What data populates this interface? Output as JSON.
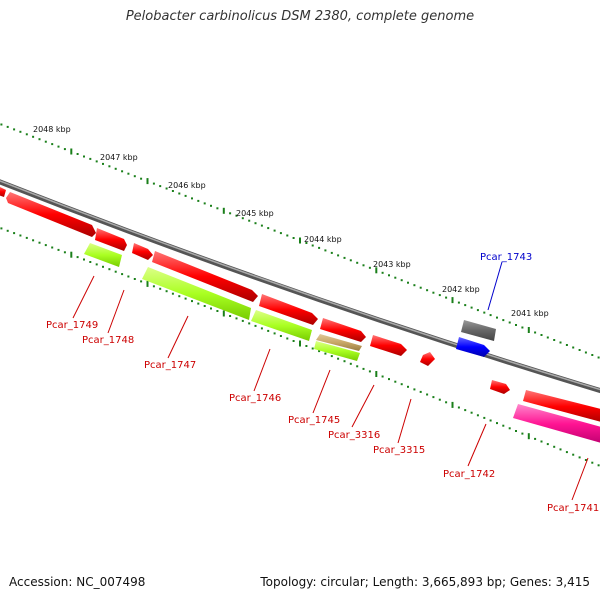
{
  "title": "Pelobacter carbinolicus DSM 2380, complete genome",
  "footer": {
    "accession": "Accession: NC_007498",
    "summary": "Topology: circular; Length: 3,665,893 bp; Genes: 3,415"
  },
  "scale_labels": [
    "2048 kbp",
    "2047 kbp",
    "2046 kbp",
    "2045 kbp",
    "2044 kbp",
    "2043 kbp",
    "2042 kbp",
    "2041 kbp"
  ],
  "genes": [
    {
      "label": "Pcar_1749",
      "color": "#ff0000",
      "strand": "forward"
    },
    {
      "label": "Pcar_1748",
      "color": "#ff0000",
      "strand": "forward"
    },
    {
      "label": "Pcar_1747",
      "color": "#ff0000",
      "strand": "forward"
    },
    {
      "label": "Pcar_1746",
      "color": "#ff0000",
      "strand": "forward"
    },
    {
      "label": "Pcar_1745",
      "color": "#ff0000",
      "strand": "forward"
    },
    {
      "label": "Pcar_3316",
      "color": "#ff0000",
      "strand": "forward"
    },
    {
      "label": "Pcar_3315",
      "color": "#ff0000",
      "strand": "forward"
    },
    {
      "label": "Pcar_1743",
      "color": "#0000ff",
      "strand": "forward"
    },
    {
      "label": "Pcar_1742",
      "color": "#ff0000",
      "strand": "forward"
    },
    {
      "label": "Pcar_1741",
      "color": "#ff0000",
      "strand": "forward"
    }
  ],
  "colors": {
    "backbone": "#888888",
    "ticks": "#1a7f1a",
    "gene_red": "#ff0000",
    "gene_green": "#aaff22",
    "gene_blue": "#0000ff",
    "gene_gray": "#666666",
    "gene_pink": "#ff1493",
    "gene_tan": "#c8a868",
    "label_red": "#cc0000",
    "label_blue": "#0000cc"
  }
}
